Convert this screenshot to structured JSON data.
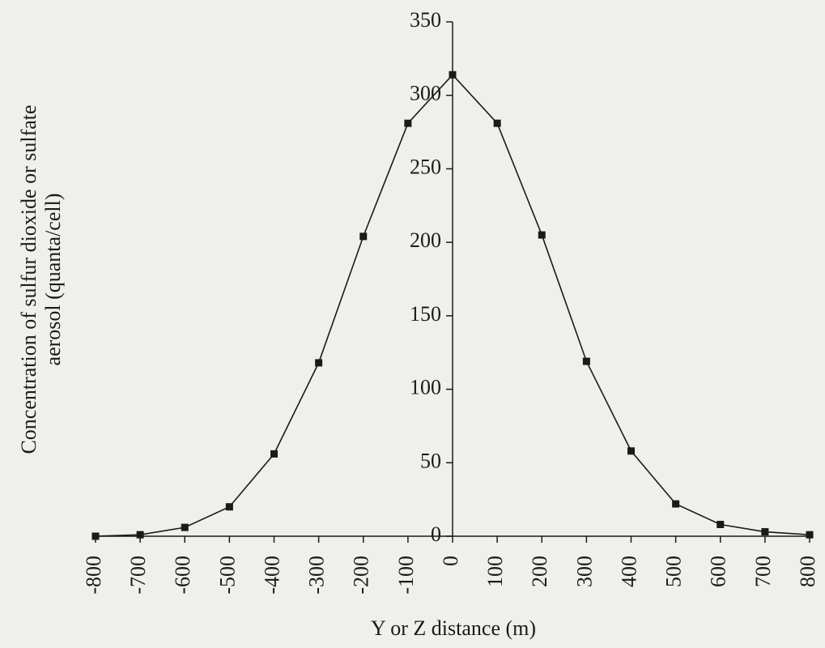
{
  "chart_data": {
    "type": "line",
    "x_label": "Y or Z distance (m)",
    "y_label": [
      "Concentration of sulfur dioxide or sulfate",
      "aerosol (quanta/cell)"
    ],
    "x": [
      -800,
      -700,
      -600,
      -500,
      -400,
      -300,
      -200,
      -100,
      0,
      100,
      200,
      300,
      400,
      500,
      600,
      700,
      800
    ],
    "values": [
      0,
      1,
      6,
      20,
      56,
      118,
      204,
      281,
      314,
      281,
      205,
      119,
      58,
      22,
      8,
      3,
      1
    ],
    "color": "#1a1a1a",
    "xlim": [
      -800,
      800
    ],
    "xticks": [
      -800,
      -700,
      -600,
      -500,
      -400,
      -300,
      -200,
      -100,
      0,
      100,
      200,
      300,
      400,
      500,
      600,
      700,
      800
    ],
    "ylim": [
      0,
      350
    ],
    "yticks": [
      0,
      50,
      100,
      150,
      200,
      250,
      300,
      350
    ],
    "grid": false
  }
}
